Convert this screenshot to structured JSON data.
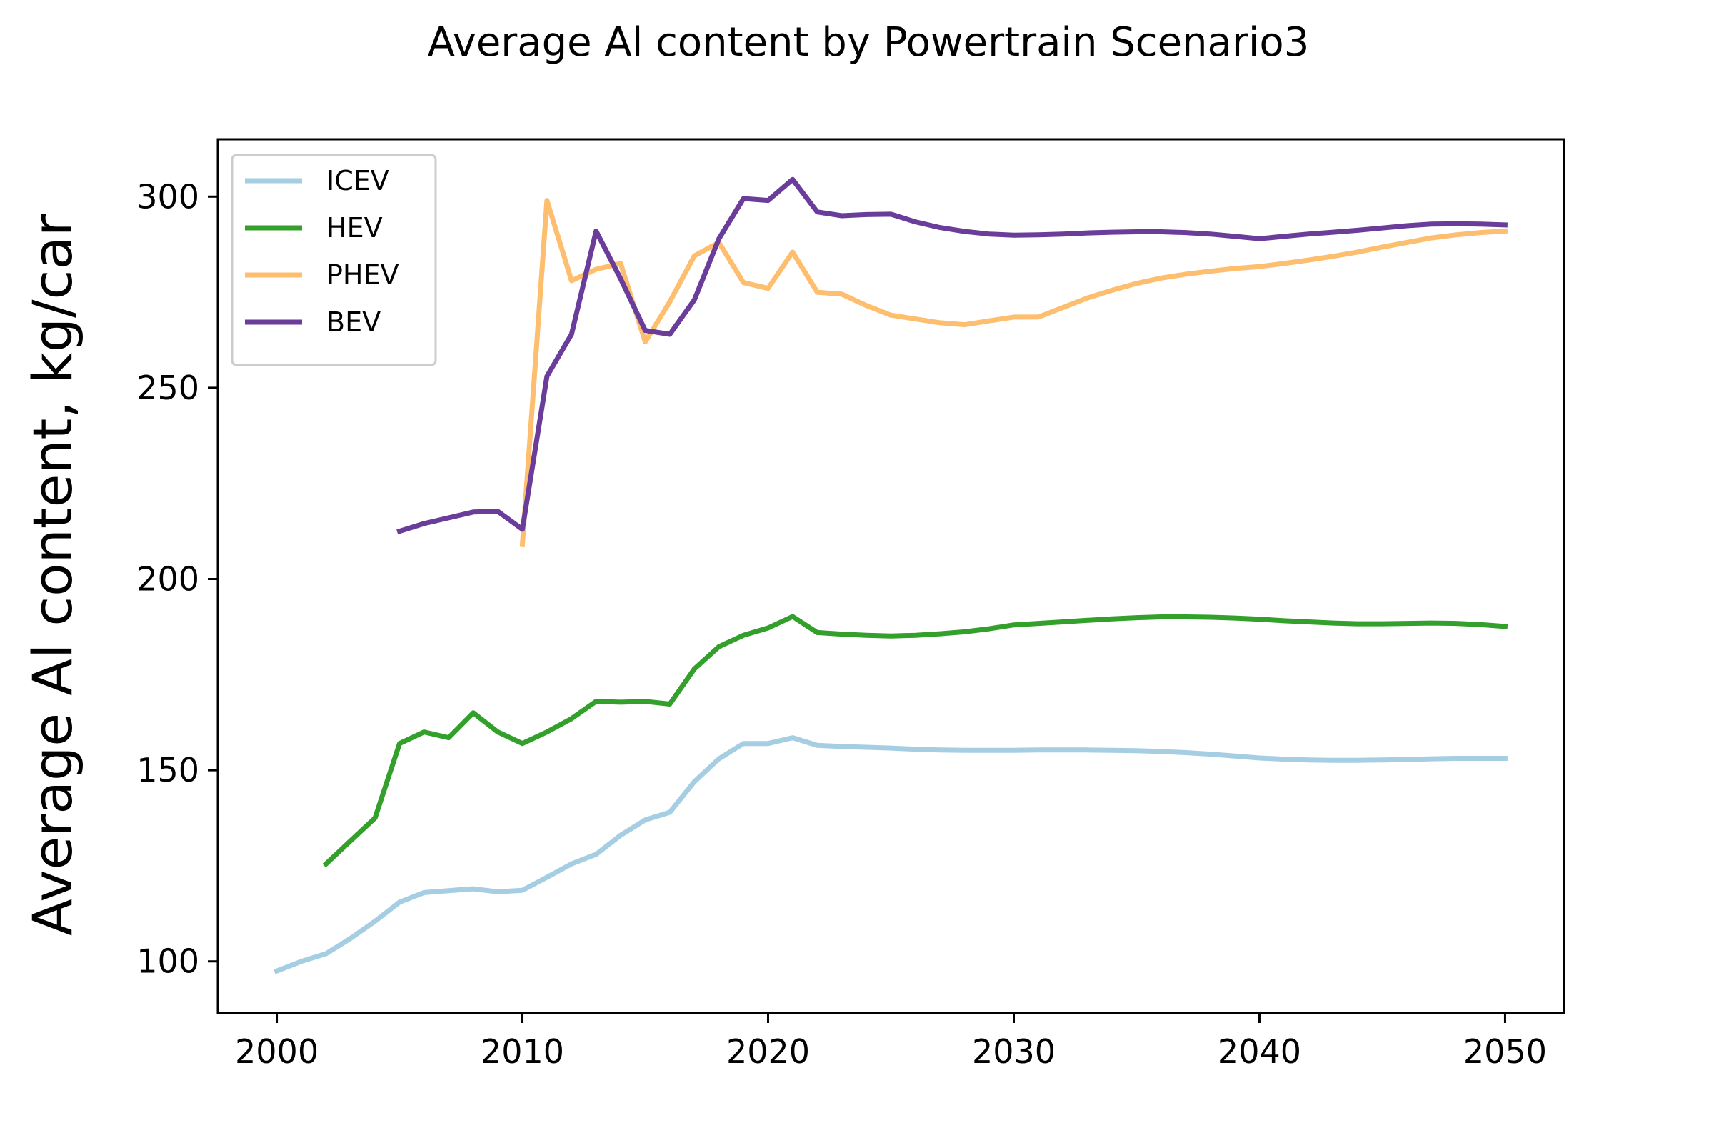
{
  "chart_data": {
    "type": "line",
    "title": "Average Al content by Powertrain Scenario3",
    "xlabel": "",
    "ylabel": "Average Al content, kg/car",
    "xlim": [
      1997.6,
      2052.4
    ],
    "ylim": [
      86.5,
      315
    ],
    "xticks": [
      2000,
      2010,
      2020,
      2030,
      2040,
      2050
    ],
    "yticks": [
      100,
      150,
      200,
      250,
      300
    ],
    "grid": false,
    "legend_position": "upper-left",
    "series": [
      {
        "name": "ICEV",
        "color": "#a6cee3",
        "x": [
          2000,
          2001,
          2002,
          2003,
          2004,
          2005,
          2006,
          2007,
          2008,
          2009,
          2010,
          2011,
          2012,
          2013,
          2014,
          2015,
          2016,
          2017,
          2018,
          2019,
          2020,
          2021,
          2022,
          2023,
          2024,
          2025,
          2026,
          2027,
          2028,
          2029,
          2030,
          2031,
          2032,
          2033,
          2034,
          2035,
          2036,
          2037,
          2038,
          2039,
          2040,
          2041,
          2042,
          2043,
          2044,
          2045,
          2046,
          2047,
          2048,
          2049,
          2050
        ],
        "y": [
          97.5,
          100,
          102,
          106,
          110.5,
          115.5,
          118,
          118.5,
          119,
          118.2,
          118.6,
          122,
          125.5,
          128,
          133,
          137,
          139,
          147,
          153,
          157,
          157,
          158.5,
          156.5,
          156.2,
          156,
          155.8,
          155.5,
          155.3,
          155.2,
          155.2,
          155.2,
          155.3,
          155.3,
          155.3,
          155.2,
          155.1,
          154.9,
          154.6,
          154.2,
          153.7,
          153.2,
          152.9,
          152.7,
          152.6,
          152.6,
          152.7,
          152.8,
          153,
          153.1,
          153.1,
          153.1
        ]
      },
      {
        "name": "HEV",
        "color": "#33a02c",
        "x": [
          2002,
          2003,
          2004,
          2005,
          2006,
          2007,
          2008,
          2009,
          2010,
          2011,
          2012,
          2013,
          2014,
          2015,
          2016,
          2017,
          2018,
          2019,
          2020,
          2021,
          2022,
          2023,
          2024,
          2025,
          2026,
          2027,
          2028,
          2029,
          2030,
          2031,
          2032,
          2033,
          2034,
          2035,
          2036,
          2037,
          2038,
          2039,
          2040,
          2041,
          2042,
          2043,
          2044,
          2045,
          2046,
          2047,
          2048,
          2049,
          2050
        ],
        "y": [
          125.5,
          131.5,
          137.5,
          157,
          160,
          158.5,
          165,
          160,
          157,
          160,
          163.5,
          168,
          167.8,
          168,
          167.3,
          176.5,
          182.3,
          185.3,
          187.2,
          190.2,
          186,
          185.6,
          185.3,
          185.1,
          185.3,
          185.7,
          186.2,
          187,
          188,
          188.4,
          188.8,
          189.2,
          189.6,
          189.9,
          190.1,
          190.1,
          190,
          189.8,
          189.5,
          189.1,
          188.8,
          188.5,
          188.3,
          188.3,
          188.4,
          188.5,
          188.4,
          188.1,
          187.6
        ]
      },
      {
        "name": "PHEV",
        "color": "#fdbf6f",
        "x": [
          2010,
          2011,
          2012,
          2013,
          2014,
          2015,
          2016,
          2017,
          2018,
          2019,
          2020,
          2021,
          2022,
          2023,
          2024,
          2025,
          2026,
          2027,
          2028,
          2029,
          2030,
          2031,
          2032,
          2033,
          2034,
          2035,
          2036,
          2037,
          2038,
          2039,
          2040,
          2041,
          2042,
          2043,
          2044,
          2045,
          2046,
          2047,
          2048,
          2049,
          2050
        ],
        "y": [
          209,
          299,
          278,
          281,
          282.5,
          262,
          272.5,
          284.5,
          288,
          277.5,
          276,
          285.5,
          275,
          274.5,
          271.5,
          269,
          268,
          267,
          266.5,
          267.5,
          268.5,
          268.5,
          271,
          273.5,
          275.5,
          277.3,
          278.7,
          279.7,
          280.5,
          281.2,
          281.7,
          282.5,
          283.4,
          284.4,
          285.5,
          286.8,
          288,
          289.2,
          290,
          290.6,
          291
        ]
      },
      {
        "name": "BEV",
        "color": "#6a3d9a",
        "x": [
          2005,
          2006,
          2007,
          2008,
          2009,
          2010,
          2011,
          2012,
          2013,
          2014,
          2015,
          2016,
          2017,
          2018,
          2019,
          2020,
          2021,
          2022,
          2023,
          2024,
          2025,
          2026,
          2027,
          2028,
          2029,
          2030,
          2031,
          2032,
          2033,
          2034,
          2035,
          2036,
          2037,
          2038,
          2039,
          2040,
          2041,
          2042,
          2043,
          2044,
          2045,
          2046,
          2047,
          2048,
          2049,
          2050
        ],
        "y": [
          212.5,
          214.5,
          216,
          217.5,
          217.7,
          213,
          253,
          264,
          291,
          278.5,
          265,
          264,
          273,
          289,
          299.5,
          299,
          304.5,
          296,
          295,
          295.3,
          295.4,
          293.4,
          291.9,
          290.9,
          290.2,
          289.9,
          290,
          290.2,
          290.5,
          290.7,
          290.8,
          290.8,
          290.6,
          290.2,
          289.6,
          289,
          289.6,
          290.2,
          290.7,
          291.2,
          291.8,
          292.4,
          292.8,
          292.9,
          292.8,
          292.6
        ]
      }
    ]
  }
}
